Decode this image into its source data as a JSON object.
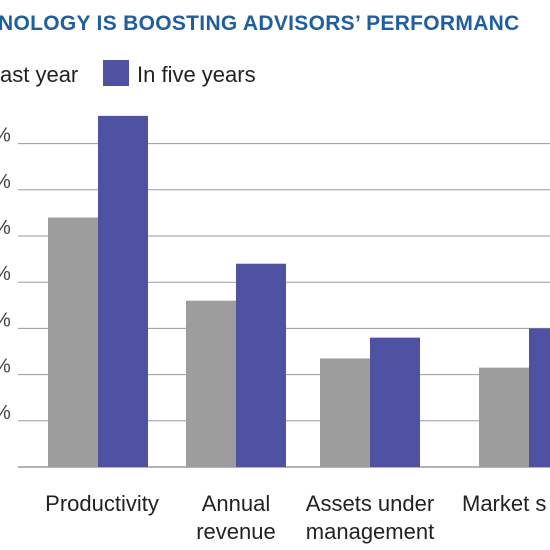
{
  "colors": {
    "title": "#1f5fa0",
    "grid": "#9a9a9a",
    "series_last_year": "#9d9d9d",
    "series_five_years": "#4f51a3"
  },
  "chart_data": {
    "type": "bar",
    "title": "NOLOGY IS BOOSTING ADVISORS’ PERFORMANC",
    "categories": [
      [
        "Productivity"
      ],
      [
        "Annual",
        "revenue"
      ],
      [
        "Assets under",
        "management"
      ],
      [
        "Market s"
      ]
    ],
    "series": [
      {
        "name": "ast year",
        "values": [
          54,
          36,
          23.5,
          21.5
        ]
      },
      {
        "name": "In five years",
        "values": [
          76,
          44,
          28,
          30
        ]
      }
    ],
    "ylim": [
      0,
      80
    ],
    "y_ticks": [
      10,
      20,
      30,
      40,
      50,
      60,
      70
    ],
    "y_tick_labels": [
      "%",
      "%",
      "%",
      "%",
      "%",
      "%",
      "%"
    ],
    "grid": true,
    "legend_placement": "top-left"
  }
}
